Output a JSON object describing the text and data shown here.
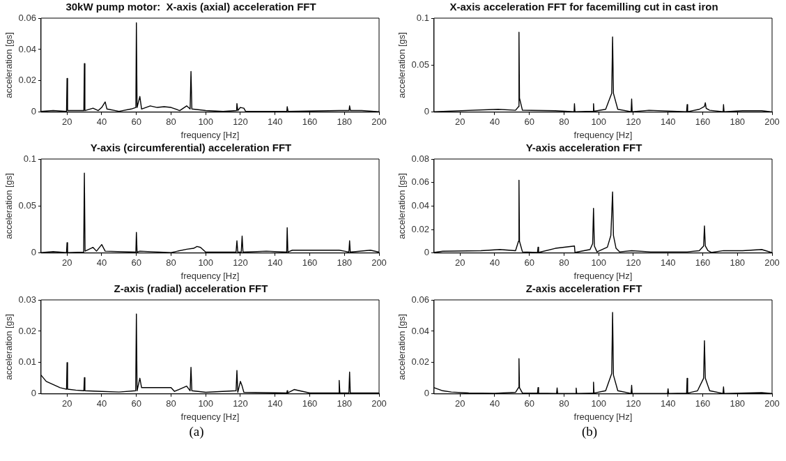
{
  "chart_data": [
    {
      "type": "line",
      "title": "30kW pump motor:  X-axis (axial) acceleration FFT",
      "xlabel": "frequency [Hz]",
      "ylabel": "acceleration [gs]",
      "xlim": [
        5,
        200
      ],
      "xticks": [
        20,
        40,
        60,
        80,
        100,
        120,
        140,
        160,
        180,
        200
      ],
      "ylim": [
        0,
        0.06
      ],
      "yticks": [
        0,
        0.02,
        0.04,
        0.06
      ],
      "grid": false,
      "marker": "none",
      "color": "#000000",
      "x": [
        5,
        12,
        19.7,
        20,
        20.3,
        25,
        29.7,
        30,
        30.3,
        35,
        38,
        40,
        42,
        43,
        50,
        57,
        59.7,
        60,
        60.4,
        62,
        63,
        68,
        72,
        76,
        80,
        85,
        89,
        91,
        91.5,
        92,
        100,
        110,
        117.8,
        118,
        118.5,
        120,
        122,
        123,
        146.8,
        147,
        147.5,
        177,
        182.7,
        183,
        183.5,
        190,
        200
      ],
      "values": [
        0.0005,
        0.001,
        0.0005,
        0.0215,
        0.001,
        0.001,
        0.001,
        0.031,
        0.001,
        0.0025,
        0.001,
        0.003,
        0.0065,
        0.002,
        0.0005,
        0.002,
        0.003,
        0.057,
        0.003,
        0.01,
        0.002,
        0.004,
        0.003,
        0.0035,
        0.003,
        0.001,
        0.004,
        0.002,
        0.026,
        0.002,
        0.001,
        0.0005,
        0.001,
        0.0055,
        0.001,
        0.003,
        0.0025,
        0.0005,
        0.0005,
        0.0035,
        0.0005,
        0.001,
        0.001,
        0.004,
        0.001,
        0.001,
        0.0003
      ]
    },
    {
      "type": "line",
      "title": "Y-axis (circumferential) acceleration FFT",
      "xlabel": "frequency [Hz]",
      "ylabel": "acceleration [gs]",
      "xlim": [
        5,
        200
      ],
      "xticks": [
        20,
        40,
        60,
        80,
        100,
        120,
        140,
        160,
        180,
        200
      ],
      "ylim": [
        0,
        0.1
      ],
      "yticks": [
        0,
        0.05,
        0.1
      ],
      "grid": false,
      "marker": "none",
      "color": "#000000",
      "x": [
        5,
        12,
        19.7,
        20,
        20.3,
        29.6,
        30,
        30.4,
        35,
        37,
        40,
        42,
        59.7,
        60,
        60.4,
        62,
        80,
        89,
        93,
        95,
        97,
        100,
        117.5,
        118,
        118.5,
        120.5,
        121,
        121.5,
        135,
        146.7,
        147,
        147.4,
        150,
        153,
        177,
        180,
        182.6,
        183,
        183.4,
        195,
        200
      ],
      "values": [
        0.0005,
        0.0015,
        0.0005,
        0.011,
        0.0005,
        0.001,
        0.085,
        0.002,
        0.006,
        0.002,
        0.009,
        0.002,
        0.001,
        0.022,
        0.001,
        0.002,
        0.0005,
        0.004,
        0.005,
        0.007,
        0.006,
        0.001,
        0.001,
        0.013,
        0.001,
        0.001,
        0.018,
        0.001,
        0.002,
        0.001,
        0.027,
        0.001,
        0.003,
        0.003,
        0.003,
        0.002,
        0.001,
        0.013,
        0.001,
        0.003,
        0.001
      ]
    },
    {
      "type": "line",
      "title": "Z-axis (radial) acceleration FFT",
      "xlabel": "frequency [Hz]",
      "ylabel": "acceleration [gs]",
      "xlim": [
        5,
        200
      ],
      "xticks": [
        20,
        40,
        60,
        80,
        100,
        120,
        140,
        160,
        180,
        200
      ],
      "ylim": [
        0,
        0.03
      ],
      "yticks": [
        0,
        0.01,
        0.02,
        0.03
      ],
      "grid": false,
      "marker": "none",
      "color": "#000000",
      "annotations": [
        "(a)"
      ],
      "x": [
        5,
        8,
        12,
        16,
        19.7,
        20,
        20.3,
        25,
        29.7,
        30,
        30.3,
        40,
        50,
        59.6,
        60,
        60.4,
        62,
        63,
        70,
        80,
        82,
        89,
        91,
        91.5,
        92,
        100,
        117.5,
        118,
        118.5,
        120,
        121,
        122,
        146.8,
        147,
        147.3,
        151,
        160,
        176.7,
        177,
        177.4,
        182.6,
        183,
        183.4,
        200
      ],
      "values": [
        0.006,
        0.004,
        0.003,
        0.002,
        0.0015,
        0.01,
        0.0015,
        0.0012,
        0.001,
        0.0052,
        0.001,
        0.0008,
        0.0006,
        0.001,
        0.0255,
        0.001,
        0.005,
        0.002,
        0.002,
        0.002,
        0.0008,
        0.0025,
        0.001,
        0.0085,
        0.001,
        0.0005,
        0.001,
        0.0075,
        0.0005,
        0.004,
        0.0025,
        0.0005,
        0.0003,
        0.001,
        0.0003,
        0.0014,
        0.0003,
        0.0003,
        0.0043,
        0.0003,
        0.0003,
        0.007,
        0.0003,
        0.0003
      ]
    },
    {
      "type": "line",
      "title": "X-axis acceleration FFT for facemilling cut in cast iron",
      "xlabel": "frequency [Hz]",
      "ylabel": "acceleration [gs]",
      "xlim": [
        5,
        200
      ],
      "xticks": [
        20,
        40,
        60,
        80,
        100,
        120,
        140,
        160,
        180,
        200
      ],
      "ylim": [
        0,
        0.1
      ],
      "yticks": [
        0,
        0.05,
        0.1
      ],
      "grid": false,
      "marker": "none",
      "color": "#000000",
      "x": [
        5,
        42,
        52,
        53.8,
        54,
        54.3,
        56,
        75,
        85.8,
        86,
        86.3,
        96.8,
        97,
        97.3,
        104,
        107.5,
        108,
        108.5,
        111,
        118.7,
        119,
        119.3,
        129,
        150.7,
        151,
        151.3,
        158,
        161,
        161.5,
        162,
        164,
        171.8,
        172,
        172.3,
        183,
        194,
        200
      ],
      "values": [
        0.0005,
        0.003,
        0.002,
        0.006,
        0.085,
        0.015,
        0.002,
        0.0015,
        0.0005,
        0.009,
        0.0005,
        0.001,
        0.009,
        0.001,
        0.003,
        0.02,
        0.08,
        0.02,
        0.003,
        0.0005,
        0.014,
        0.0005,
        0.002,
        0.0005,
        0.008,
        0.0005,
        0.003,
        0.006,
        0.01,
        0.004,
        0.002,
        0.0005,
        0.008,
        0.0005,
        0.0015,
        0.0015,
        0.0003
      ]
    },
    {
      "type": "line",
      "title": "Y-axis acceleration FFT",
      "xlabel": "frequency [Hz]",
      "ylabel": "acceleration [gs]",
      "xlim": [
        5,
        200
      ],
      "xticks": [
        20,
        40,
        60,
        80,
        100,
        120,
        140,
        160,
        180,
        200
      ],
      "ylim": [
        0,
        0.08
      ],
      "yticks": [
        0,
        0.02,
        0.04,
        0.06,
        0.08
      ],
      "grid": false,
      "marker": "none",
      "color": "#000000",
      "x": [
        5,
        10,
        32,
        43,
        52,
        53.7,
        54,
        54.3,
        56,
        64.7,
        65,
        65.3,
        75,
        86,
        86.3,
        95,
        96.5,
        97,
        97.5,
        99,
        105,
        107,
        108,
        108.5,
        110,
        112,
        119,
        130,
        151,
        158,
        160.5,
        161,
        161.5,
        163,
        165,
        172,
        183,
        194,
        200
      ],
      "values": [
        0.0005,
        0.0015,
        0.002,
        0.003,
        0.002,
        0.01,
        0.062,
        0.01,
        0.001,
        0.0005,
        0.005,
        0.0005,
        0.004,
        0.006,
        0.0005,
        0.003,
        0.008,
        0.038,
        0.006,
        0.001,
        0.005,
        0.015,
        0.052,
        0.015,
        0.004,
        0.001,
        0.002,
        0.001,
        0.001,
        0.002,
        0.006,
        0.023,
        0.006,
        0.002,
        0.0005,
        0.002,
        0.002,
        0.003,
        0.0003
      ]
    },
    {
      "type": "line",
      "title": "Z-axis acceleration FFT",
      "xlabel": "frequency [Hz]",
      "ylabel": "acceleration [gs]",
      "xlim": [
        5,
        200
      ],
      "xticks": [
        20,
        40,
        60,
        80,
        100,
        120,
        140,
        160,
        180,
        200
      ],
      "ylim": [
        0,
        0.06
      ],
      "yticks": [
        0,
        0.02,
        0.04,
        0.06
      ],
      "grid": false,
      "marker": "none",
      "color": "#000000",
      "annotations": [
        "(b)"
      ],
      "x": [
        5,
        10,
        15,
        25,
        40,
        52,
        53.7,
        54,
        54.3,
        56,
        64.7,
        65,
        65.3,
        75.7,
        76,
        76.3,
        86.7,
        87,
        87.3,
        96.7,
        97,
        97.3,
        104,
        107.5,
        108,
        108.5,
        111,
        118.7,
        119,
        119.3,
        139.7,
        140,
        140.3,
        150.7,
        151,
        151.3,
        157,
        160.5,
        161,
        161.5,
        164,
        171.7,
        172,
        172.3,
        194,
        200
      ],
      "values": [
        0.004,
        0.002,
        0.0012,
        0.0006,
        0.0004,
        0.001,
        0.004,
        0.0225,
        0.004,
        0.0005,
        0.0005,
        0.004,
        0.0005,
        0.0003,
        0.0038,
        0.0003,
        0.0003,
        0.0037,
        0.0003,
        0.0005,
        0.0075,
        0.0005,
        0.002,
        0.013,
        0.052,
        0.012,
        0.002,
        0.0003,
        0.0055,
        0.0003,
        0.0003,
        0.0033,
        0.0003,
        0.0005,
        0.01,
        0.0005,
        0.002,
        0.01,
        0.034,
        0.01,
        0.002,
        0.0003,
        0.0045,
        0.0003,
        0.0008,
        0.0003
      ]
    }
  ]
}
